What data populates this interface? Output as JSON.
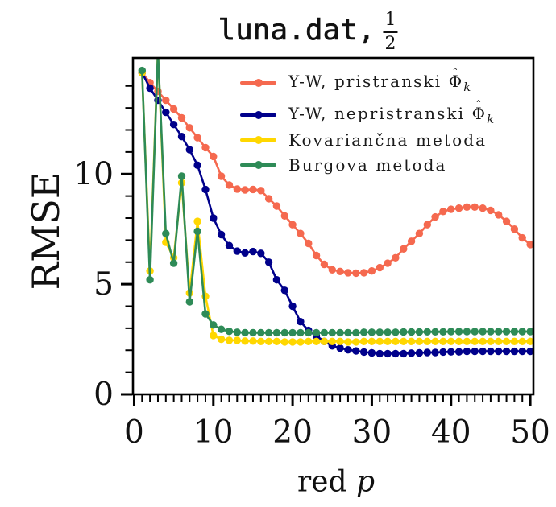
{
  "title": {
    "file": "luna.dat",
    "comma": ",",
    "frac_num": "1",
    "frac_den": "2"
  },
  "chart_data": {
    "type": "line",
    "title": "luna.dat, 1/2",
    "xlabel_text": "red",
    "xlabel_var": "p",
    "ylabel": "RMSE",
    "xlim": [
      -0.15,
      50.4
    ],
    "ylim": [
      0,
      15.27
    ],
    "xticks": [
      0,
      10,
      20,
      30,
      40,
      50
    ],
    "yticks": [
      0,
      5,
      10
    ],
    "minor_ticks_x_every": 1,
    "minor_ticks_y_every": 1,
    "grid": false,
    "legend_position": "upper right inside",
    "x": [
      1,
      2,
      3,
      4,
      5,
      6,
      7,
      8,
      9,
      10,
      11,
      12,
      13,
      14,
      15,
      16,
      17,
      18,
      19,
      20,
      21,
      22,
      23,
      24,
      25,
      26,
      27,
      28,
      29,
      30,
      31,
      32,
      33,
      34,
      35,
      36,
      37,
      38,
      39,
      40,
      41,
      42,
      43,
      44,
      45,
      46,
      47,
      48,
      49,
      50
    ],
    "series": [
      {
        "name": "Y-W, pristranski Phi-hat_k",
        "legend_text": "Y-W, pristranski",
        "legend_math": "Φ",
        "legend_hat": "ˆ",
        "legend_sub": "k",
        "color": "#f5694f",
        "values": [
          14.6,
          14.15,
          13.75,
          13.35,
          12.95,
          12.55,
          12.1,
          11.65,
          11.2,
          10.8,
          9.9,
          9.5,
          9.32,
          9.28,
          9.3,
          9.25,
          8.88,
          8.55,
          8.1,
          7.7,
          7.3,
          6.85,
          6.3,
          5.9,
          5.65,
          5.58,
          5.52,
          5.5,
          5.52,
          5.6,
          5.75,
          5.95,
          6.2,
          6.6,
          6.95,
          7.3,
          7.7,
          8.05,
          8.3,
          8.4,
          8.45,
          8.5,
          8.5,
          8.45,
          8.35,
          8.15,
          7.85,
          7.5,
          7.1,
          6.8
        ]
      },
      {
        "name": "Y-W, nepristranski Phi-hat_k",
        "legend_text": "Y-W, nepristranski",
        "legend_math": "Φ",
        "legend_hat": "ˆ",
        "legend_sub": "k",
        "color": "#00008b",
        "values": [
          14.6,
          13.9,
          13.35,
          12.8,
          12.25,
          11.7,
          11.1,
          10.4,
          9.3,
          8.0,
          7.25,
          6.75,
          6.5,
          6.42,
          6.48,
          6.4,
          6.0,
          5.2,
          4.72,
          4.0,
          3.3,
          2.9,
          2.65,
          2.4,
          2.2,
          2.1,
          2.02,
          1.97,
          1.92,
          1.88,
          1.85,
          1.85,
          1.85,
          1.85,
          1.87,
          1.88,
          1.9,
          1.9,
          1.92,
          1.93,
          1.93,
          1.95,
          1.95,
          1.95,
          1.95,
          1.95,
          1.95,
          1.95,
          1.95,
          1.95
        ]
      },
      {
        "name": "Kovariančna metoda",
        "legend_text": "Kovariančna metoda",
        "color": "#ffd700",
        "values": [
          14.6,
          5.6,
          15.6,
          6.9,
          6.2,
          9.6,
          4.6,
          7.85,
          4.45,
          2.67,
          2.5,
          2.45,
          2.45,
          2.42,
          2.42,
          2.4,
          2.4,
          2.4,
          2.38,
          2.38,
          2.38,
          2.4,
          2.4,
          2.4,
          2.4,
          2.4,
          2.38,
          2.38,
          2.4,
          2.4,
          2.4,
          2.4,
          2.4,
          2.4,
          2.4,
          2.4,
          2.4,
          2.4,
          2.4,
          2.4,
          2.4,
          2.4,
          2.4,
          2.4,
          2.4,
          2.4,
          2.4,
          2.4,
          2.4,
          2.4
        ]
      },
      {
        "name": "Burgova metoda",
        "legend_text": "Burgova metoda",
        "color": "#2e8b57",
        "values": [
          14.7,
          5.2,
          15.6,
          7.3,
          5.95,
          9.9,
          4.2,
          7.4,
          3.65,
          3.15,
          2.95,
          2.86,
          2.82,
          2.8,
          2.8,
          2.8,
          2.8,
          2.8,
          2.8,
          2.8,
          2.8,
          2.8,
          2.8,
          2.8,
          2.8,
          2.8,
          2.8,
          2.8,
          2.82,
          2.82,
          2.82,
          2.82,
          2.82,
          2.83,
          2.83,
          2.83,
          2.84,
          2.84,
          2.84,
          2.85,
          2.85,
          2.85,
          2.85,
          2.85,
          2.85,
          2.85,
          2.85,
          2.85,
          2.85,
          2.85
        ]
      }
    ]
  }
}
